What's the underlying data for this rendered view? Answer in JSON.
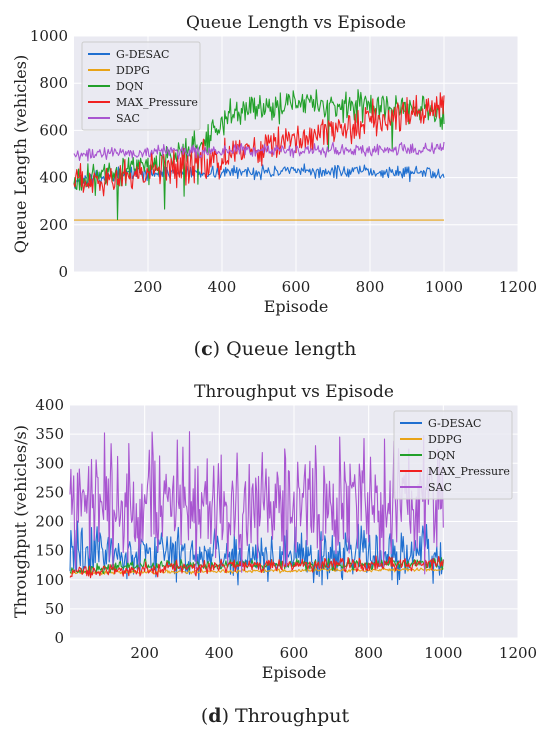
{
  "chart_data": [
    {
      "type": "line",
      "title": "Queue Length vs Episode",
      "xlabel": "Episode",
      "ylabel": "Queue Length (vehicles)",
      "xlim": [
        0,
        1200
      ],
      "ylim": [
        0,
        1000
      ],
      "xticks": [
        "200",
        "400",
        "600",
        "800",
        "1000",
        "1200"
      ],
      "yticks": [
        "0",
        "200",
        "400",
        "600",
        "800",
        "1000"
      ],
      "grid": true,
      "legend": "top-left",
      "series": [
        {
          "name": "G-DESAC",
          "color": "#1f6fd0",
          "trend": [
            [
              0,
              380
            ],
            [
              150,
              420
            ],
            [
              300,
              420
            ],
            [
              500,
              425
            ],
            [
              700,
              425
            ],
            [
              1000,
              420
            ]
          ],
          "noise": 25
        },
        {
          "name": "DDPG",
          "color": "#e8a317",
          "trend": [
            [
              0,
              220
            ],
            [
              1000,
              220
            ]
          ],
          "noise": 0
        },
        {
          "name": "DQN",
          "color": "#22a02a",
          "trend": [
            [
              0,
              390
            ],
            [
              200,
              440
            ],
            [
              350,
              560
            ],
            [
              450,
              680
            ],
            [
              600,
              720
            ],
            [
              800,
              700
            ],
            [
              1000,
              680
            ]
          ],
          "noise": 60
        },
        {
          "name": "MAX_Pressure",
          "color": "#f02020",
          "trend": [
            [
              0,
              380
            ],
            [
              300,
              450
            ],
            [
              600,
              560
            ],
            [
              800,
              640
            ],
            [
              1000,
              700
            ]
          ],
          "noise": 70
        },
        {
          "name": "SAC",
          "color": "#a855d0",
          "trend": [
            [
              0,
              500
            ],
            [
              300,
              510
            ],
            [
              600,
              515
            ],
            [
              1000,
              520
            ]
          ],
          "noise": 25
        }
      ]
    },
    {
      "type": "line",
      "title": "Throughput vs Episode",
      "xlabel": "Episode",
      "ylabel": "Throughput (vehicles/s)",
      "xlim": [
        0,
        1200
      ],
      "ylim": [
        0,
        400
      ],
      "xticks": [
        "200",
        "400",
        "600",
        "800",
        "1000",
        "1200"
      ],
      "yticks": [
        "0",
        "50",
        "100",
        "150",
        "200",
        "250",
        "300",
        "350",
        "400"
      ],
      "grid": true,
      "legend": "top-right",
      "series": [
        {
          "name": "G-DESAC",
          "color": "#1f6fd0",
          "trend": [
            [
              0,
              150
            ],
            [
              500,
              140
            ],
            [
              1000,
              140
            ]
          ],
          "noise": 40
        },
        {
          "name": "DDPG",
          "color": "#e8a317",
          "trend": [
            [
              0,
              112
            ],
            [
              1000,
              118
            ]
          ],
          "noise": 3
        },
        {
          "name": "DQN",
          "color": "#22a02a",
          "trend": [
            [
              0,
              115
            ],
            [
              200,
              125
            ],
            [
              500,
              125
            ],
            [
              1000,
              128
            ]
          ],
          "noise": 8
        },
        {
          "name": "MAX_Pressure",
          "color": "#f02020",
          "trend": [
            [
              0,
              113
            ],
            [
              500,
              125
            ],
            [
              1000,
              128
            ]
          ],
          "noise": 10
        },
        {
          "name": "SAC",
          "color": "#a855d0",
          "trend": [
            [
              0,
              230
            ],
            [
              500,
              230
            ],
            [
              1000,
              230
            ]
          ],
          "noise": 90
        }
      ]
    }
  ],
  "captions": {
    "c_letter": "c",
    "c_text": " Queue length",
    "d_letter": "d",
    "d_text": " Throughput"
  }
}
